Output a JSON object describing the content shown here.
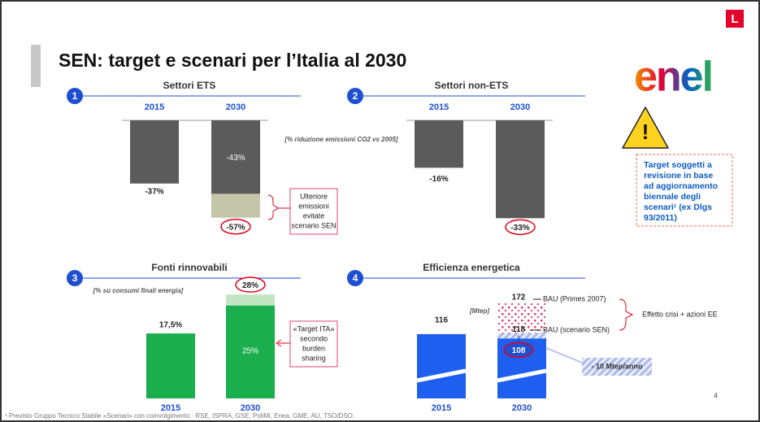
{
  "title": "SEN: target e scenari per l’Italia al 2030",
  "logo": "enel",
  "logo_badge": "L",
  "page_number": "4",
  "footnote": "¹ Previsto Gruppo Tecnico Stabile «Scenari» con coinvolgimento : RSE, ISPRA, GSE, PoliMi, Enea, GME, AU, TSO/DSO.",
  "note": [
    "Target soggetti a",
    "revisione in base",
    "ad aggiornamento",
    "biennale degli",
    "scenari¹ (ex Dlgs",
    "93/2011)"
  ],
  "chart_data": [
    {
      "type": "bar",
      "number": "1",
      "title": "Settori ETS",
      "subtitle": "[% riduzione emissioni CO2 vs 2005]",
      "categories": [
        "2015",
        "2030"
      ],
      "series": [
        {
          "color": "#c5c5a9",
          "values": [
            null,
            -57
          ],
          "value_labels": [
            null,
            "-57%"
          ]
        },
        {
          "color": "#5b5b5b",
          "values": [
            -37,
            -43
          ],
          "value_labels": [
            "-37%",
            "-43%"
          ]
        }
      ],
      "ylim": [
        -60,
        0
      ],
      "annotation": [
        "Ulteriore",
        "emissioni",
        "evitate",
        "scenario SEN"
      ]
    },
    {
      "type": "bar",
      "number": "2",
      "title": "Settori non-ETS",
      "categories": [
        "2015",
        "2030"
      ],
      "series": [
        {
          "color": "#5b5b5b",
          "values": [
            -16,
            -33
          ],
          "value_labels": [
            "-16%",
            "-33%"
          ]
        }
      ],
      "ylim": [
        -34,
        0
      ]
    },
    {
      "type": "bar",
      "number": "3",
      "title": "Fonti rinnovabili",
      "subtitle": "[% su consumi finali energia]",
      "categories": [
        "2015",
        "2030"
      ],
      "series": [
        {
          "color": "#c2e6c4",
          "values": [
            null,
            28
          ],
          "value_labels": [
            null,
            "28%"
          ]
        },
        {
          "color": "#1aae4c",
          "values": [
            17.5,
            25
          ],
          "value_labels": [
            "17,5%",
            "25%"
          ]
        }
      ],
      "ylim": [
        0,
        30
      ],
      "annotation": [
        "«Target ITA»",
        "secondo",
        "burden",
        "sharing"
      ]
    },
    {
      "type": "bar",
      "number": "4",
      "title": "Efficienza energetica",
      "subtitle": "[Mtep]",
      "categories": [
        "2015",
        "2030"
      ],
      "series": [
        {
          "name": "BAU (Primes 2007)",
          "color": "#e0407a",
          "values": [
            null,
            172
          ]
        },
        {
          "name": "BAU (scenario SEN)",
          "color": "#a9b9e8",
          "values": [
            null,
            118
          ]
        },
        {
          "color": "#1f5ff0",
          "values": [
            116,
            108
          ]
        }
      ],
      "ylim": [
        0,
        176
      ],
      "annotation": [
        "Effetto crisi + azioni EE"
      ],
      "callout": "- 10 Mtep/anno"
    }
  ]
}
